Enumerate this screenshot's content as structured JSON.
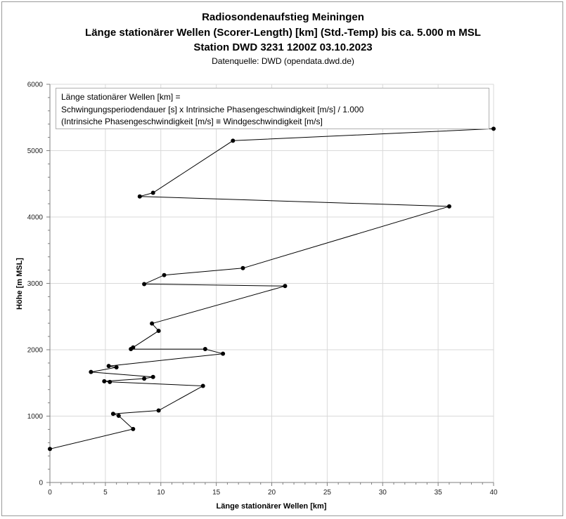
{
  "titles": {
    "line1": "Radiosondenaufstieg Meiningen",
    "line2": "Länge stationärer Wellen (Scorer-Length) [km] (Std.-Temp) bis ca. 5.000 m MSL",
    "line3": "Station DWD 3231 1200Z 03.10.2023",
    "line4": "Datenquelle: DWD (opendata.dwd.de)"
  },
  "note": {
    "line1": "Länge stationärer Wellen [km] =",
    "line2": "Schwingungsperiodendauer [s] x Intrinsiche Phasengeschwindigkeit [m/s]  / 1.000",
    "line3": "(Intrinsiche Phasengeschwindigkeit [m/s] ≡ Windgeschwindigkeit [m/s]"
  },
  "chart_data": {
    "type": "scatter",
    "xlabel": "Länge stationärer Wellen [km]",
    "ylabel": "Höhe [m MSL]",
    "xlim": [
      0,
      40
    ],
    "ylim": [
      0,
      6000
    ],
    "x_ticks": [
      0,
      5,
      10,
      15,
      20,
      25,
      30,
      35,
      40
    ],
    "y_ticks": [
      0,
      1000,
      2000,
      3000,
      4000,
      5000,
      6000
    ],
    "grid": true,
    "colors": {
      "series": "#000000",
      "grid": "#d9d9d9"
    },
    "series": [
      {
        "points": [
          {
            "x": 0.0,
            "y": 505
          },
          {
            "x": 7.5,
            "y": 805
          },
          {
            "x": 6.2,
            "y": 1005
          },
          {
            "x": 5.7,
            "y": 1035
          },
          {
            "x": 9.8,
            "y": 1085
          },
          {
            "x": 13.8,
            "y": 1455
          },
          {
            "x": 5.4,
            "y": 1515
          },
          {
            "x": 4.9,
            "y": 1525
          },
          {
            "x": 8.5,
            "y": 1565
          },
          {
            "x": 9.3,
            "y": 1590
          },
          {
            "x": 3.7,
            "y": 1665
          },
          {
            "x": 6.0,
            "y": 1735
          },
          {
            "x": 5.3,
            "y": 1755
          },
          {
            "x": 15.6,
            "y": 1940
          },
          {
            "x": 14.0,
            "y": 2010
          },
          {
            "x": 7.3,
            "y": 2010
          },
          {
            "x": 7.5,
            "y": 2035
          },
          {
            "x": 9.8,
            "y": 2285
          },
          {
            "x": 9.2,
            "y": 2395
          },
          {
            "x": 21.2,
            "y": 2960
          },
          {
            "x": 8.5,
            "y": 2990
          },
          {
            "x": 10.3,
            "y": 3125
          },
          {
            "x": 17.4,
            "y": 3230
          },
          {
            "x": 36.0,
            "y": 4160
          },
          {
            "x": 8.1,
            "y": 4310
          },
          {
            "x": 9.3,
            "y": 4365
          },
          {
            "x": 16.5,
            "y": 5150
          },
          {
            "x": 40.0,
            "y": 5330
          }
        ]
      }
    ]
  }
}
